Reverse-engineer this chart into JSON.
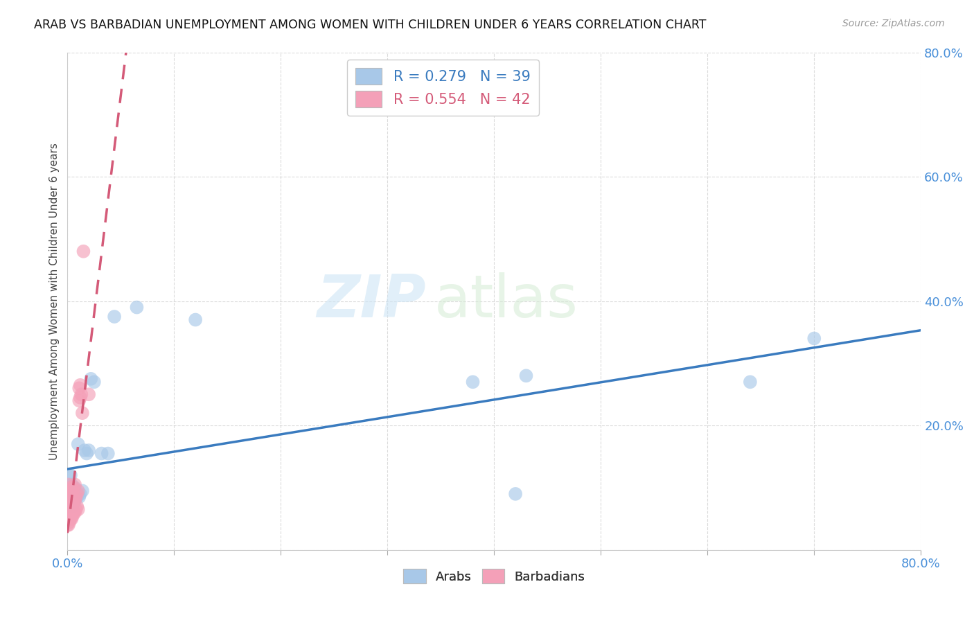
{
  "title": "ARAB VS BARBADIAN UNEMPLOYMENT AMONG WOMEN WITH CHILDREN UNDER 6 YEARS CORRELATION CHART",
  "source": "Source: ZipAtlas.com",
  "ylabel": "Unemployment Among Women with Children Under 6 years",
  "arab_color": "#a8c8e8",
  "barbadian_color": "#f4a0b8",
  "arab_line_color": "#3a7bbf",
  "barbadian_line_color": "#d45a78",
  "arab_R": 0.279,
  "arab_N": 39,
  "barbadian_R": 0.554,
  "barbadian_N": 42,
  "background_color": "#ffffff",
  "grid_color": "#cccccc",
  "watermark_zip": "ZIP",
  "watermark_atlas": "atlas",
  "tick_color": "#4a90d9",
  "xlim": [
    0.0,
    0.8
  ],
  "ylim": [
    0.0,
    0.8
  ],
  "arab_x": [
    0.0,
    0.001,
    0.001,
    0.001,
    0.002,
    0.002,
    0.003,
    0.003,
    0.003,
    0.004,
    0.004,
    0.005,
    0.005,
    0.006,
    0.006,
    0.007,
    0.007,
    0.008,
    0.009,
    0.01,
    0.011,
    0.012,
    0.014,
    0.016,
    0.018,
    0.02,
    0.022,
    0.025,
    0.032,
    0.038,
    0.044,
    0.065,
    0.12,
    0.38,
    0.42,
    0.43,
    0.64,
    0.7,
    0.01
  ],
  "arab_y": [
    0.08,
    0.07,
    0.095,
    0.12,
    0.08,
    0.1,
    0.07,
    0.09,
    0.12,
    0.08,
    0.105,
    0.07,
    0.09,
    0.075,
    0.095,
    0.08,
    0.1,
    0.085,
    0.085,
    0.09,
    0.085,
    0.09,
    0.095,
    0.16,
    0.155,
    0.16,
    0.275,
    0.27,
    0.155,
    0.155,
    0.375,
    0.39,
    0.37,
    0.27,
    0.09,
    0.28,
    0.27,
    0.34,
    0.17
  ],
  "barbadian_x": [
    0.0,
    0.0,
    0.0,
    0.001,
    0.001,
    0.001,
    0.001,
    0.001,
    0.002,
    0.002,
    0.002,
    0.002,
    0.003,
    0.003,
    0.003,
    0.003,
    0.004,
    0.004,
    0.004,
    0.005,
    0.005,
    0.005,
    0.006,
    0.006,
    0.006,
    0.007,
    0.007,
    0.007,
    0.008,
    0.008,
    0.009,
    0.009,
    0.01,
    0.01,
    0.011,
    0.011,
    0.012,
    0.012,
    0.013,
    0.014,
    0.015,
    0.02
  ],
  "barbadian_y": [
    0.04,
    0.06,
    0.08,
    0.04,
    0.055,
    0.07,
    0.085,
    0.105,
    0.045,
    0.06,
    0.075,
    0.095,
    0.05,
    0.065,
    0.08,
    0.1,
    0.05,
    0.07,
    0.09,
    0.055,
    0.075,
    0.095,
    0.06,
    0.08,
    0.1,
    0.06,
    0.08,
    0.105,
    0.065,
    0.085,
    0.07,
    0.09,
    0.065,
    0.095,
    0.24,
    0.26,
    0.245,
    0.265,
    0.25,
    0.22,
    0.48,
    0.25
  ]
}
